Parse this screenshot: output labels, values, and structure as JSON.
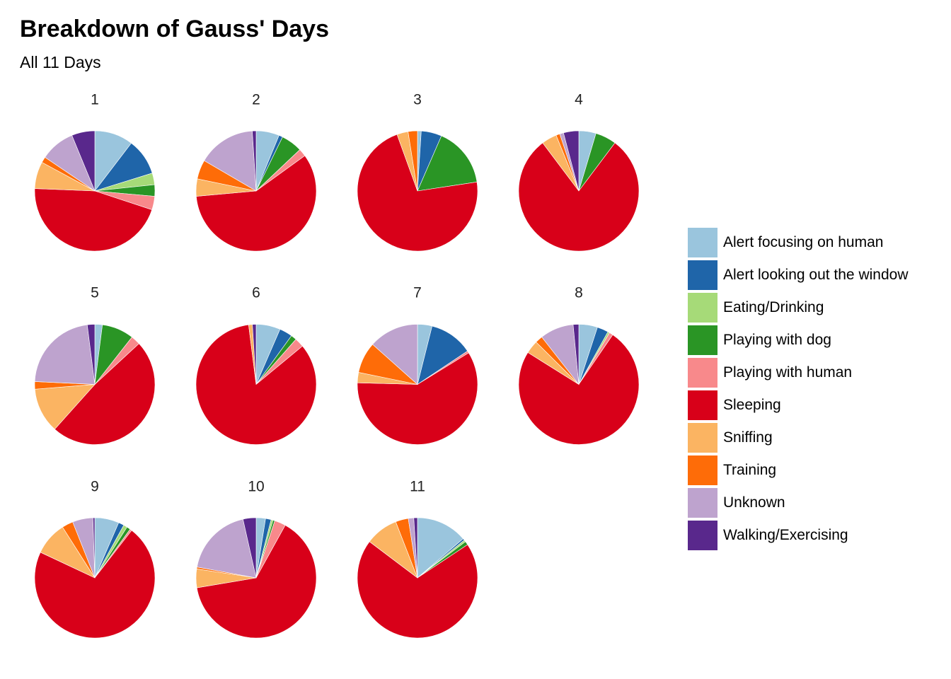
{
  "chart_data": {
    "type": "pie",
    "title": "Breakdown of Gauss' Days",
    "subtitle": "All 11 Days",
    "categories": [
      "Alert focusing on human",
      "Alert looking out the window",
      "Eating/Drinking",
      "Playing with dog",
      "Playing with human",
      "Sleeping",
      "Sniffing",
      "Training",
      "Unknown",
      "Walking/Exercising"
    ],
    "colors": [
      "#9ac5dd",
      "#1f65a9",
      "#a6da78",
      "#2a9525",
      "#f8898b",
      "#d80019",
      "#fbb462",
      "#fe6c08",
      "#bea3ce",
      "#59288c"
    ],
    "legend_position": "right",
    "pies": [
      {
        "label": "1",
        "values": [
          10,
          9.5,
          3,
          3,
          3.5,
          44,
          7,
          1.5,
          9,
          6
        ]
      },
      {
        "label": "2",
        "values": [
          6,
          1,
          0,
          5.5,
          2,
          56.5,
          4.5,
          5,
          15,
          1
        ]
      },
      {
        "label": "3",
        "values": [
          1,
          5.5,
          0,
          16,
          0,
          71.5,
          3,
          2.5,
          0,
          0
        ]
      },
      {
        "label": "4",
        "values": [
          4.5,
          0,
          0,
          5.5,
          0,
          77.5,
          4,
          1,
          1,
          4
        ]
      },
      {
        "label": "5",
        "values": [
          2,
          0,
          0,
          8.5,
          2.5,
          48,
          12,
          2,
          22,
          2
        ]
      },
      {
        "label": "6",
        "values": [
          6.5,
          3.5,
          0,
          1.5,
          2.5,
          84,
          1,
          0,
          0,
          1
        ]
      },
      {
        "label": "7",
        "values": [
          3.5,
          10.5,
          0,
          0,
          0.5,
          53,
          2.5,
          7.5,
          12,
          0
        ]
      },
      {
        "label": "8",
        "values": [
          5,
          3,
          0.5,
          0,
          1,
          74,
          3.5,
          2,
          9,
          1.5
        ]
      },
      {
        "label": "9",
        "values": [
          6.5,
          1.5,
          1,
          1,
          0.5,
          71.5,
          9,
          3,
          5.5,
          0.5
        ]
      },
      {
        "label": "10",
        "values": [
          2.5,
          1.5,
          0.5,
          0.5,
          3,
          64,
          5,
          0.5,
          18.5,
          3.5
        ]
      },
      {
        "label": "11",
        "values": [
          14,
          0.5,
          0.5,
          1,
          0,
          71,
          9,
          3.5,
          1.5,
          1
        ]
      }
    ]
  }
}
